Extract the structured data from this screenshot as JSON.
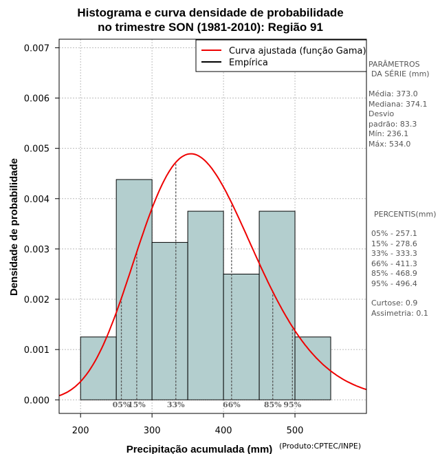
{
  "chart_data": {
    "type": "bar",
    "title_lines": [
      "Histograma e curva densidade de probabilidade",
      "no trimestre SON (1981-2010): Região 91"
    ],
    "xlabel": "Precipitação acumulada (mm)",
    "ylabel": "Densidade de probabilidade",
    "product_note": "(Produto:CPTEC/INPE)",
    "xlim": [
      170,
      600
    ],
    "ylim": [
      -0.00027,
      0.00717
    ],
    "x_ticks": [
      200,
      300,
      400,
      500
    ],
    "y_ticks": [
      0.0,
      0.001,
      0.002,
      0.003,
      0.004,
      0.005,
      0.006,
      0.007
    ],
    "y_tick_labels": [
      "0.000",
      "0.001",
      "0.002",
      "0.003",
      "0.004",
      "0.005",
      "0.006",
      "0.007"
    ],
    "bins": [
      {
        "start": 200,
        "end": 250,
        "density": 0.00125
      },
      {
        "start": 250,
        "end": 300,
        "density": 0.00438
      },
      {
        "start": 300,
        "end": 350,
        "density": 0.00313
      },
      {
        "start": 350,
        "end": 400,
        "density": 0.00375
      },
      {
        "start": 400,
        "end": 450,
        "density": 0.0025
      },
      {
        "start": 450,
        "end": 500,
        "density": 0.00375
      },
      {
        "start": 500,
        "end": 550,
        "density": 0.00125
      }
    ],
    "fitted_curve": {
      "name": "Curva ajustada (função Gama)",
      "color": "#ee0000",
      "mean": 373.0,
      "sd": 83.3
    },
    "legend": [
      {
        "label": "Curva ajustada (função Gama)",
        "color": "#ee0000"
      },
      {
        "label": "Empírica",
        "color": "#000000"
      }
    ],
    "percentile_markers": [
      {
        "label": "05%",
        "value": 257.1
      },
      {
        "label": "15%",
        "value": 278.6
      },
      {
        "label": "33%",
        "value": 333.3
      },
      {
        "label": "66%",
        "value": 411.3
      },
      {
        "label": "85%",
        "value": 468.9
      },
      {
        "label": "95%",
        "value": 496.4
      }
    ],
    "bar_color": "#b3cece",
    "grid": true
  },
  "side_panel": {
    "params_title_1": "PARÂMETROS",
    "params_title_2": "DA SÉRIE (mm)",
    "media": "Média:  373.0",
    "mediana": "Mediana:  374.1",
    "desvio": "Desvio",
    "padrao": "padrão:  83.3",
    "min": "Mín:  236.1",
    "max": "Máx:  534.0",
    "percentis_title": "PERCENTIS(mm)",
    "p05": "05% -  257.1",
    "p15": "15% -  278.6",
    "p33": "33% -  333.3",
    "p66": "66% -  411.3",
    "p85": "85% -  468.9",
    "p95": "95% -  496.4",
    "curtose": "Curtose:  0.9",
    "assimetria": "Assimetria:  0.1"
  }
}
